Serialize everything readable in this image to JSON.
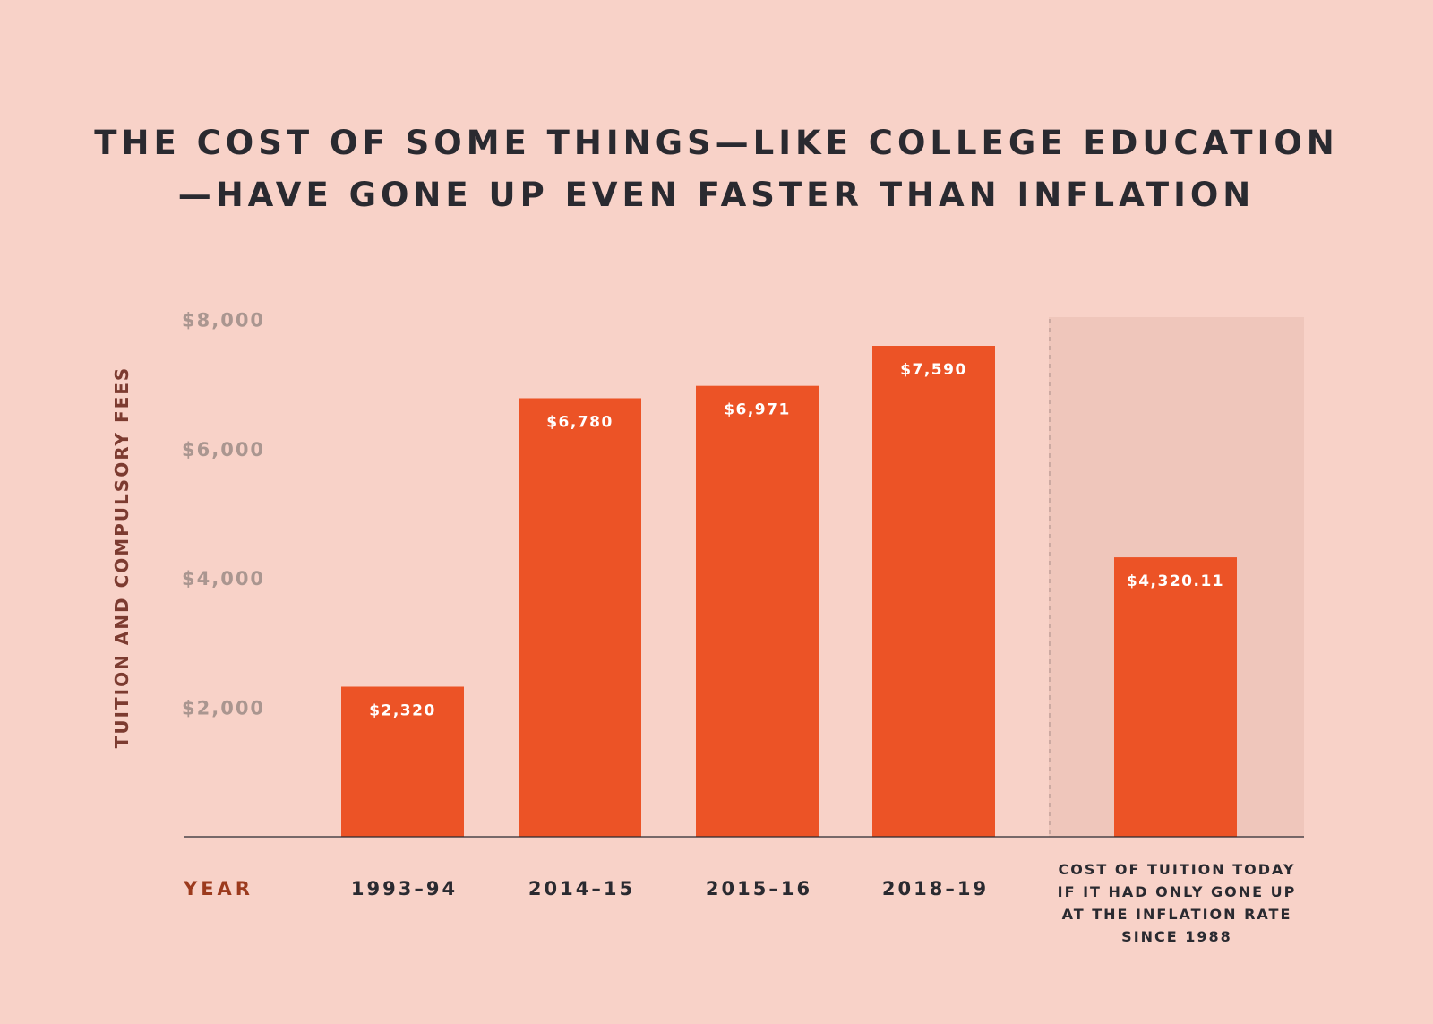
{
  "chart_data": {
    "type": "bar",
    "title_lines": [
      "THE COST OF SOME THINGS—LIKE COLLEGE EDUCATION",
      "—HAVE GONE UP EVEN FASTER THAN INFLATION"
    ],
    "ylabel": "TUITION AND COMPULSORY FEES",
    "xlabel": "YEAR",
    "ylim": [
      0,
      8000
    ],
    "yticks": [
      2000,
      4000,
      6000,
      8000
    ],
    "ytick_labels": [
      "$2,000",
      "$4,000",
      "$6,000",
      "$8,000"
    ],
    "categories": [
      [
        "1993–94"
      ],
      [
        "2014–15"
      ],
      [
        "2015–16"
      ],
      [
        "2018–19"
      ],
      [
        "COST OF TUITION TODAY",
        "IF IT HAD ONLY GONE UP",
        "AT THE INFLATION RATE",
        "SINCE 1988"
      ]
    ],
    "values": [
      2320,
      6780,
      6971,
      7590,
      4320.11
    ],
    "data_labels": [
      "$2,320",
      "$6,780",
      "$6,971",
      "$7,590",
      "$4,320.11"
    ],
    "highlighted_category_index": 4,
    "grid": false,
    "colors": {
      "background": "#f8d2c8",
      "bar": "#ec5326",
      "highlight_region": "#efc6bb",
      "text": "#2a2a30"
    }
  }
}
